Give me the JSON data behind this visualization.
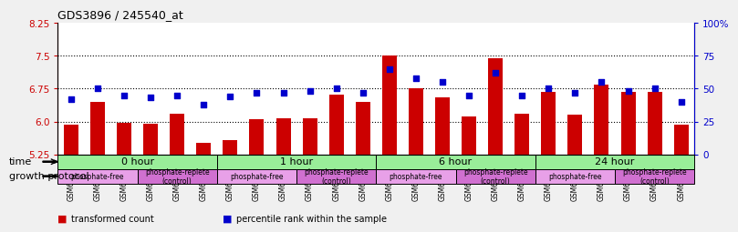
{
  "title": "GDS3896 / 245540_at",
  "samples": [
    "GSM618325",
    "GSM618333",
    "GSM618341",
    "GSM618324",
    "GSM618332",
    "GSM618340",
    "GSM618327",
    "GSM618335",
    "GSM618343",
    "GSM618326",
    "GSM618334",
    "GSM618342",
    "GSM618329",
    "GSM618337",
    "GSM618345",
    "GSM618328",
    "GSM618336",
    "GSM618344",
    "GSM618331",
    "GSM618339",
    "GSM618347",
    "GSM618330",
    "GSM618338",
    "GSM618346"
  ],
  "bar_values": [
    5.92,
    6.45,
    5.97,
    5.95,
    6.18,
    5.52,
    5.58,
    6.05,
    6.08,
    6.08,
    6.62,
    6.45,
    7.5,
    6.75,
    6.55,
    6.12,
    7.45,
    6.18,
    6.68,
    6.15,
    6.85,
    6.68,
    6.68,
    5.92
  ],
  "dot_values": [
    42,
    50,
    45,
    43,
    45,
    38,
    44,
    47,
    47,
    48,
    50,
    47,
    65,
    58,
    55,
    45,
    62,
    45,
    50,
    47,
    55,
    48,
    50,
    40
  ],
  "ylim_left": [
    5.25,
    8.25
  ],
  "ylim_right": [
    0,
    100
  ],
  "yticks_left": [
    5.25,
    6.0,
    6.75,
    7.5,
    8.25
  ],
  "yticks_right": [
    0,
    25,
    50,
    75,
    100
  ],
  "ytick_labels_right": [
    "0",
    "25",
    "50",
    "75",
    "100%"
  ],
  "bar_color": "#cc0000",
  "dot_color": "#0000cc",
  "bg_color": "#f0f0f0",
  "plot_bg": "#ffffff",
  "time_groups": [
    {
      "label": "0 hour",
      "start": 0,
      "end": 6
    },
    {
      "label": "1 hour",
      "start": 6,
      "end": 12
    },
    {
      "label": "6 hour",
      "start": 12,
      "end": 18
    },
    {
      "label": "24 hour",
      "start": 18,
      "end": 24
    }
  ],
  "time_bg": "#99ee99",
  "protocol_groups": [
    {
      "label": "phosphate-free",
      "start": 0,
      "end": 3,
      "color": "#e8a0e8"
    },
    {
      "label": "phosphate-replete\n(control)",
      "start": 3,
      "end": 6,
      "color": "#d070d0"
    },
    {
      "label": "phosphate-free",
      "start": 6,
      "end": 9,
      "color": "#e8a0e8"
    },
    {
      "label": "phosphate-replete\n(control)",
      "start": 9,
      "end": 12,
      "color": "#d070d0"
    },
    {
      "label": "phosphate-free",
      "start": 12,
      "end": 15,
      "color": "#e8a0e8"
    },
    {
      "label": "phosphate-replete\n(control)",
      "start": 15,
      "end": 18,
      "color": "#d070d0"
    },
    {
      "label": "phosphate-free",
      "start": 18,
      "end": 21,
      "color": "#e8a0e8"
    },
    {
      "label": "phosphate-replete\n(control)",
      "start": 21,
      "end": 24,
      "color": "#d070d0"
    }
  ],
  "time_label": "time",
  "protocol_label": "growth protocol",
  "legend_items": [
    {
      "color": "#cc0000",
      "label": "transformed count"
    },
    {
      "color": "#0000cc",
      "label": "percentile rank within the sample"
    }
  ]
}
